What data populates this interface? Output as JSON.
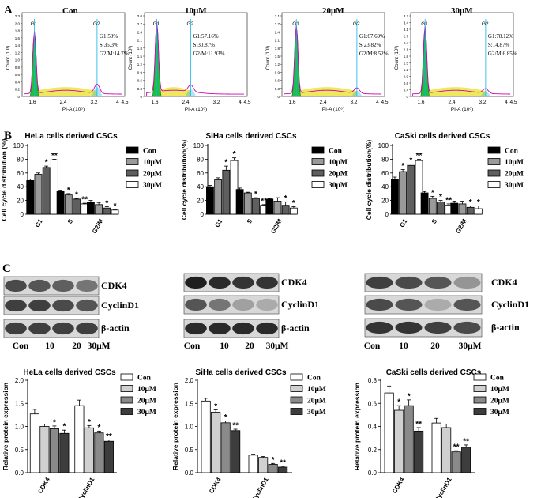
{
  "panels": {
    "a": "A",
    "b": "B",
    "c": "C"
  },
  "flow": {
    "xlabel": "PI-A (10⁶)",
    "ylabel": "Count (10³)",
    "xticks": [
      "1.6",
      "2.4",
      "3.2",
      "4",
      "4.5"
    ],
    "histograms": [
      {
        "title": "Con",
        "stats": [
          "G1:50%",
          "S:35.3%",
          "G2/M:14.7%"
        ],
        "yticks": [
          "0",
          "0.2",
          "0.4",
          "0.6",
          "0.8",
          "1.0",
          "1.2",
          "1.4",
          "1.6",
          "1.8",
          "2.0",
          "2.3"
        ]
      },
      {
        "title": "10μM",
        "stats": [
          "G1:57.16%",
          "S:30.87%",
          "G2/M:11.93%"
        ],
        "yticks": [
          "0",
          "0.3",
          "0.6",
          "0.9",
          "1.2",
          "1.5",
          "1.8",
          "2.1",
          "2.4",
          "2.7",
          "3.0"
        ]
      },
      {
        "title": "20μM",
        "stats": [
          "G1:67.69%",
          "S:23.82%",
          "G2/M:8.52%"
        ],
        "yticks": [
          "0",
          "0.3",
          "0.6",
          "0.9",
          "1.2",
          "1.5",
          "1.8",
          "2.1",
          "2.4",
          "2.7",
          "3.1"
        ]
      },
      {
        "title": "30μM",
        "stats": [
          "G1:78.12%",
          "S:14.87%",
          "G2/M:6.85%"
        ],
        "yticks": [
          "0",
          "0.4",
          "0.6",
          "0.9",
          "1.2",
          "1.5",
          "1.8",
          "2.1",
          "2.4",
          "2.7",
          "3.1",
          "3.4",
          "3.7"
        ]
      }
    ],
    "gate_labels": [
      "G1",
      "G2"
    ]
  },
  "legend_labels": [
    "Con",
    "10μM",
    "20μM",
    "30μM"
  ],
  "blots": {
    "lane_labels": [
      "Con",
      "10",
      "20",
      "30μM"
    ],
    "row_labels": [
      "CDK4",
      "CyclinD1",
      "β-actin"
    ]
  },
  "colors": {
    "con": "#000000",
    "c10": "#9a9a9a",
    "c20": "#5f5f5f",
    "c30": "#ffffff",
    "b_con": "#ffffff",
    "b_10": "#d0d0d0",
    "b_20": "#8a8a8a",
    "b_30": "#3d3d3d",
    "green": "#1fbf3f",
    "magenta": "#d400b4",
    "yellow": "#ece64a",
    "cyan": "#12b4e6"
  },
  "chart_data": [
    {
      "type": "bar",
      "title": "HeLa cells derived CSCs",
      "ylabel": "Cell cycle distribution (%)",
      "categories": [
        "G1",
        "S",
        "G2/M"
      ],
      "ylim": [
        0,
        100
      ],
      "yticks": [
        0,
        20,
        40,
        60,
        80,
        100
      ],
      "series": [
        {
          "name": "Con",
          "values": [
            49,
            33,
            17
          ]
        },
        {
          "name": "10μM",
          "values": [
            58,
            28,
            14
          ]
        },
        {
          "name": "20μM",
          "values": [
            68,
            22,
            9
          ]
        },
        {
          "name": "30μM",
          "values": [
            79,
            15,
            6
          ]
        }
      ],
      "errors": [
        [
          2,
          2,
          3
        ],
        [
          2,
          2,
          3
        ],
        [
          2,
          1,
          2
        ],
        [
          1,
          1,
          1
        ]
      ],
      "sig": [
        [
          "",
          "",
          ""
        ],
        [
          "",
          "*",
          ""
        ],
        [
          "*",
          "*",
          "*"
        ],
        [
          "**",
          "**",
          "*"
        ]
      ]
    },
    {
      "type": "bar",
      "title": "SiHa cells derived CSCs",
      "ylabel": "Cell cycle distribution(%)",
      "categories": [
        "G1",
        "S",
        "G2/M"
      ],
      "ylim": [
        0,
        100
      ],
      "yticks": [
        0,
        20,
        40,
        60,
        80,
        100
      ],
      "series": [
        {
          "name": "Con",
          "values": [
            40,
            36,
            22
          ]
        },
        {
          "name": "10μM",
          "values": [
            50,
            31,
            19
          ]
        },
        {
          "name": "20μM",
          "values": [
            64,
            23,
            13
          ]
        },
        {
          "name": "30μM",
          "values": [
            78,
            13,
            9
          ]
        }
      ],
      "errors": [
        [
          2,
          2,
          1
        ],
        [
          3,
          1,
          5
        ],
        [
          6,
          1,
          5
        ],
        [
          4,
          1,
          2
        ]
      ],
      "sig": [
        [
          "",
          "",
          ""
        ],
        [
          "",
          "",
          ""
        ],
        [
          "*",
          "*",
          "*"
        ],
        [
          "*",
          "**",
          "*"
        ]
      ]
    },
    {
      "type": "bar",
      "title": "CaSki cells derived CSCs",
      "ylabel": "Cell cycle distribution(%)",
      "categories": [
        "G1",
        "S",
        "G2/M"
      ],
      "ylim": [
        0,
        100
      ],
      "yticks": [
        0,
        20,
        40,
        60,
        80,
        100
      ],
      "series": [
        {
          "name": "Con",
          "values": [
            51,
            31,
            16
          ]
        },
        {
          "name": "10μM",
          "values": [
            62,
            23,
            15
          ]
        },
        {
          "name": "20μM",
          "values": [
            71,
            18,
            10
          ]
        },
        {
          "name": "30μM",
          "values": [
            78,
            13,
            8
          ]
        }
      ],
      "errors": [
        [
          3,
          2,
          3
        ],
        [
          3,
          3,
          4
        ],
        [
          2,
          2,
          2
        ],
        [
          2,
          2,
          4
        ]
      ],
      "sig": [
        [
          "",
          "",
          ""
        ],
        [
          "*",
          "*",
          ""
        ],
        [
          "*",
          "*",
          "*"
        ],
        [
          "**",
          "**",
          "*"
        ]
      ]
    },
    {
      "type": "bar",
      "title": "HeLa cells derived CSCs",
      "ylabel": "Relative protein expression",
      "categories": [
        "CDK4",
        "CyclinD1"
      ],
      "ylim": [
        0,
        2.0
      ],
      "yticks": [
        0.0,
        0.5,
        1.0,
        1.5,
        2.0
      ],
      "series": [
        {
          "name": "Con",
          "values": [
            1.27,
            1.45
          ]
        },
        {
          "name": "10μM",
          "values": [
            1.0,
            0.97
          ]
        },
        {
          "name": "20μM",
          "values": [
            0.95,
            0.86
          ]
        },
        {
          "name": "30μM",
          "values": [
            0.85,
            0.68
          ]
        }
      ],
      "errors": [
        [
          0.1,
          0.12
        ],
        [
          0.05,
          0.05
        ],
        [
          0.06,
          0.04
        ],
        [
          0.07,
          0.03
        ]
      ],
      "sig": [
        [
          "",
          ""
        ],
        [
          "",
          "*"
        ],
        [
          "*",
          "*"
        ],
        [
          "*",
          "**"
        ]
      ]
    },
    {
      "type": "bar",
      "title": "SiHa cells derived CSCs",
      "ylabel": "Relative protein expression",
      "categories": [
        "CDK4",
        "CyclinD1"
      ],
      "ylim": [
        0,
        2.0
      ],
      "yticks": [
        0.0,
        0.5,
        1.0,
        1.5,
        2.0
      ],
      "series": [
        {
          "name": "Con",
          "values": [
            1.55,
            0.38
          ]
        },
        {
          "name": "10μM",
          "values": [
            1.31,
            0.33
          ]
        },
        {
          "name": "20μM",
          "values": [
            1.08,
            0.18
          ]
        },
        {
          "name": "30μM",
          "values": [
            0.91,
            0.12
          ]
        }
      ],
      "errors": [
        [
          0.06,
          0.02
        ],
        [
          0.05,
          0.02
        ],
        [
          0.04,
          0.02
        ],
        [
          0.03,
          0.02
        ]
      ],
      "sig": [
        [
          "",
          ""
        ],
        [
          "*",
          ""
        ],
        [
          "*",
          "*"
        ],
        [
          "**",
          "**"
        ]
      ]
    },
    {
      "type": "bar",
      "title": "CaSki cells derived CSCs",
      "ylabel": "Relative protein expression",
      "categories": [
        "CDK4",
        "CyclinD1"
      ],
      "ylim": [
        0,
        0.8
      ],
      "yticks": [
        0.0,
        0.2,
        0.4,
        0.6,
        0.8
      ],
      "series": [
        {
          "name": "Con",
          "values": [
            0.69,
            0.43
          ]
        },
        {
          "name": "10μM",
          "values": [
            0.54,
            0.39
          ]
        },
        {
          "name": "20μM",
          "values": [
            0.58,
            0.18
          ]
        },
        {
          "name": "30μM",
          "values": [
            0.36,
            0.22
          ]
        }
      ],
      "errors": [
        [
          0.06,
          0.04
        ],
        [
          0.04,
          0.03
        ],
        [
          0.05,
          0.01
        ],
        [
          0.03,
          0.02
        ]
      ],
      "sig": [
        [
          "",
          ""
        ],
        [
          "*",
          ""
        ],
        [
          "*",
          "**"
        ],
        [
          "**",
          "**"
        ]
      ]
    }
  ]
}
